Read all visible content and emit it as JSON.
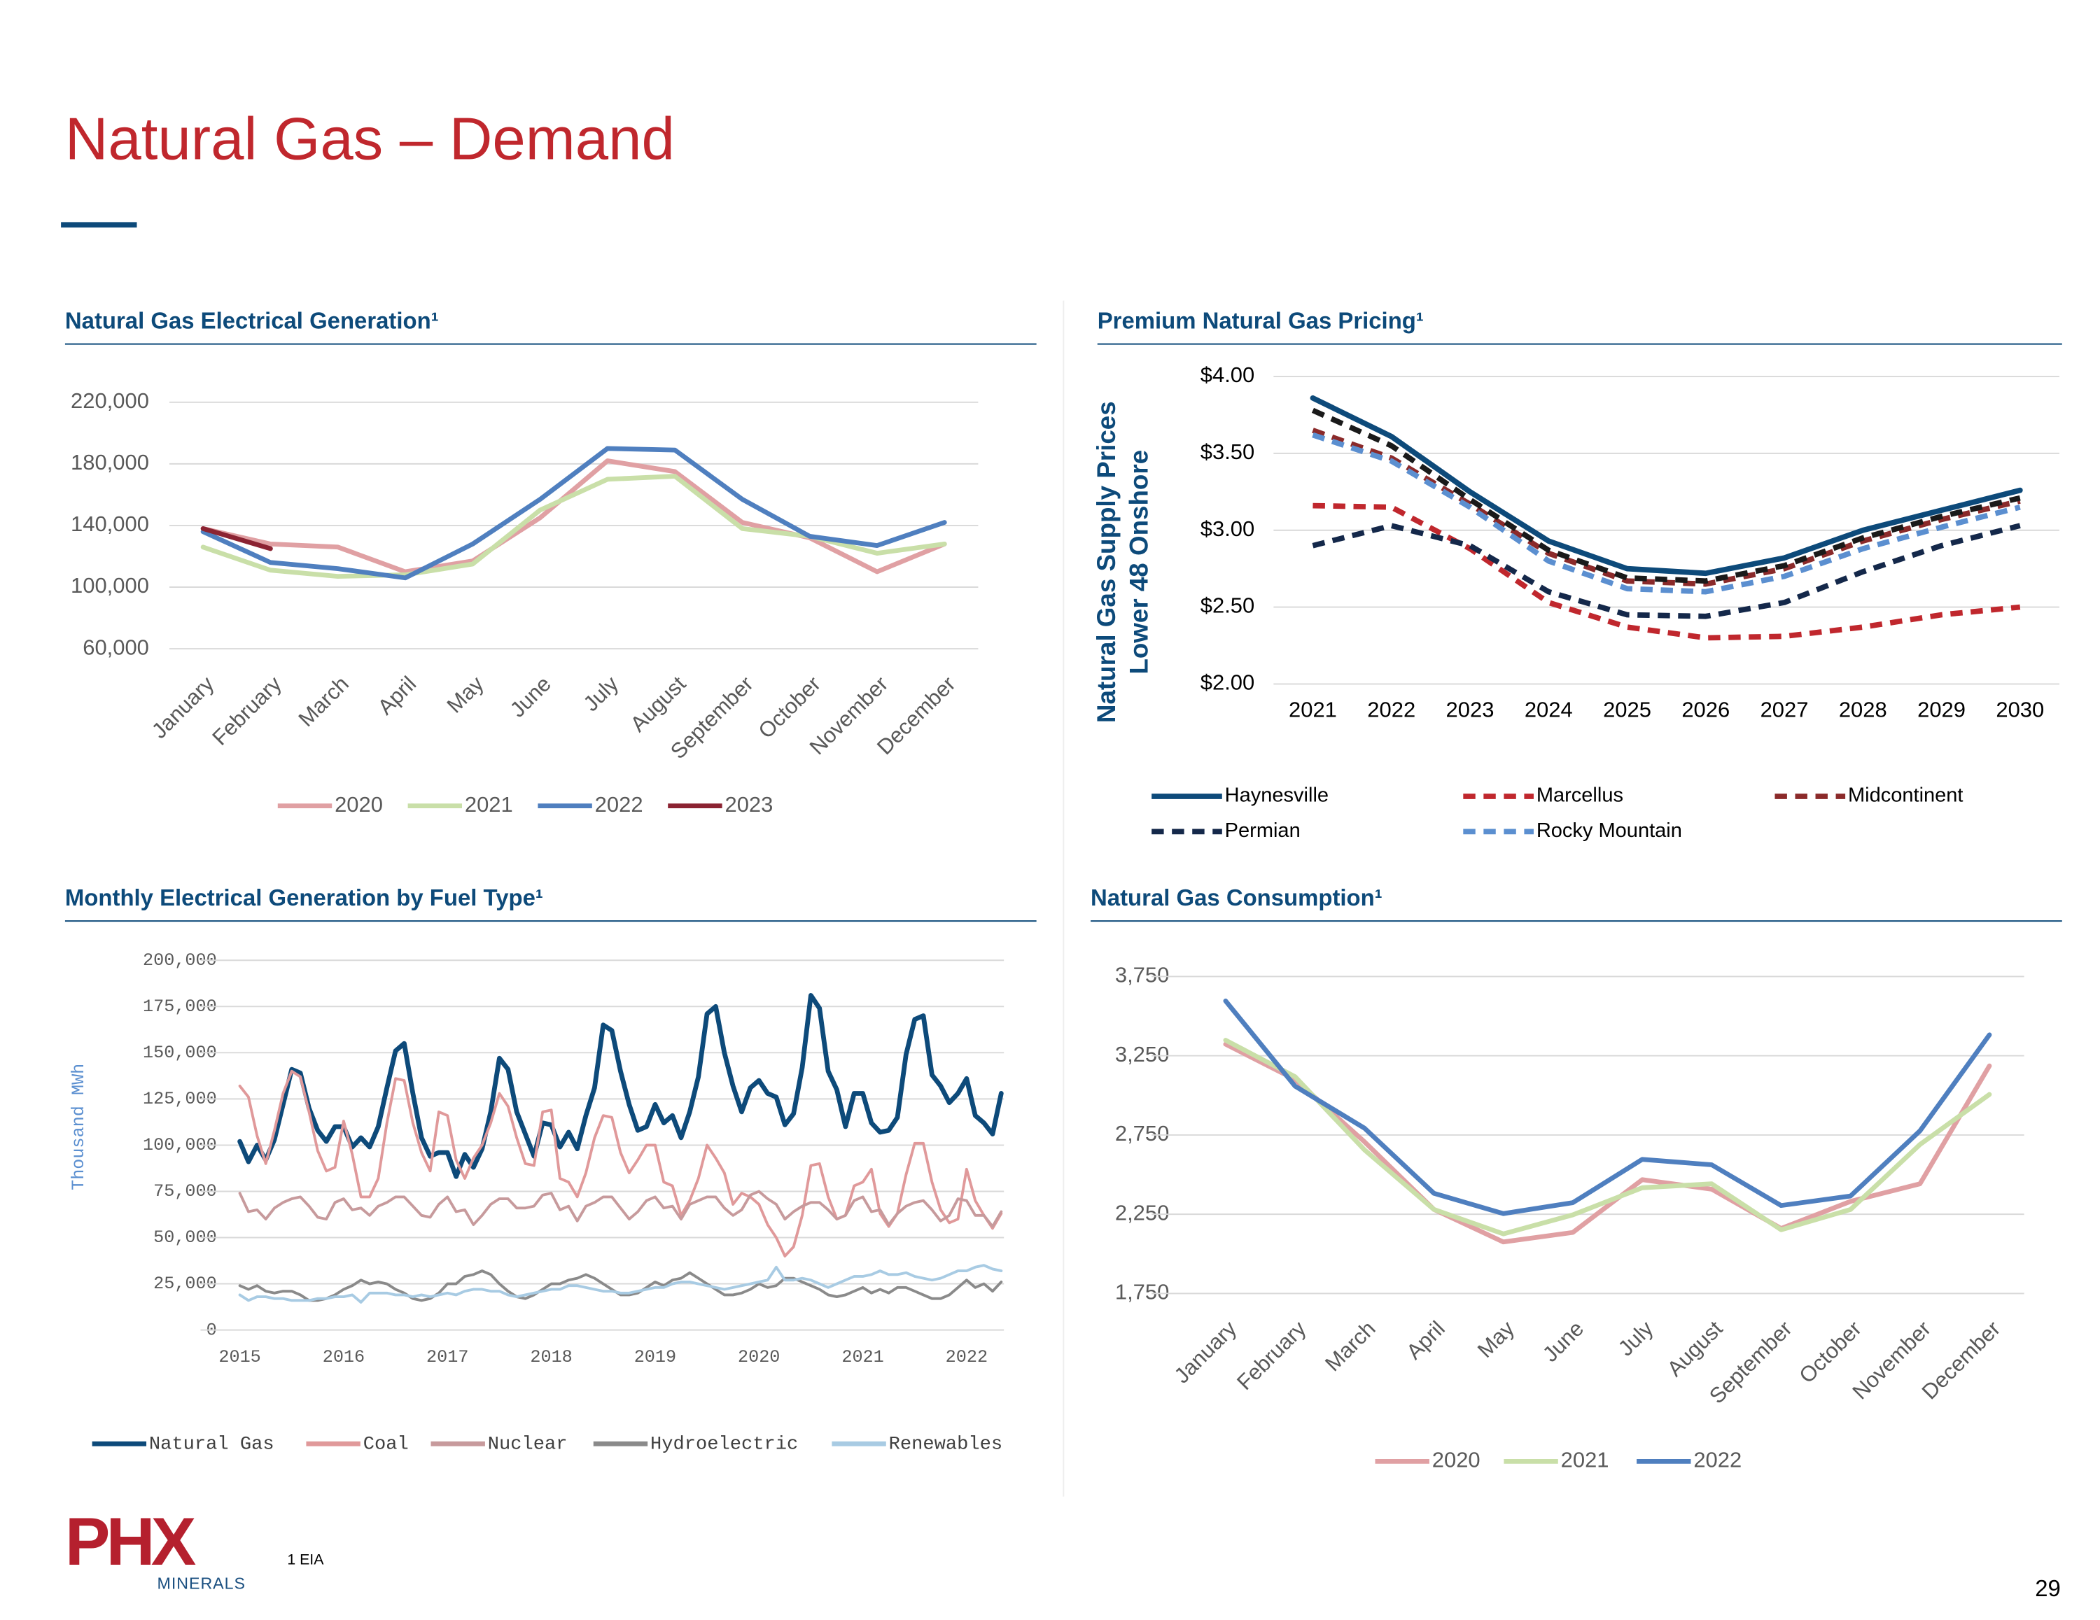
{
  "header": {
    "title": "Natural Gas – Demand"
  },
  "footnote": "1 EIA",
  "page_number": "29",
  "logo": {
    "name": "PHX",
    "sub": "MINERALS"
  },
  "chart_data": [
    {
      "type": "line",
      "title": "Natural Gas Electrical Generation¹",
      "categories": [
        "January",
        "February",
        "March",
        "April",
        "May",
        "June",
        "July",
        "August",
        "September",
        "October",
        "November",
        "December"
      ],
      "series": [
        {
          "name": "2020",
          "color": "#e0a0a3",
          "values": [
            138000,
            128000,
            126000,
            110000,
            117000,
            145000,
            182000,
            175000,
            142000,
            132000,
            110000,
            128000
          ]
        },
        {
          "name": "2021",
          "color": "#c9dfa8",
          "values": [
            126000,
            111000,
            107000,
            108000,
            115000,
            150000,
            170000,
            172000,
            138000,
            133000,
            122000,
            128000
          ]
        },
        {
          "name": "2022",
          "color": "#4f7fbf",
          "values": [
            136000,
            116000,
            112000,
            106000,
            128000,
            157000,
            190000,
            189000,
            157000,
            133000,
            127000,
            142000
          ]
        },
        {
          "name": "2023",
          "color": "#8b2332",
          "values": [
            138000,
            125000,
            null,
            null,
            null,
            null,
            null,
            null,
            null,
            null,
            null,
            null
          ]
        }
      ],
      "ylim": [
        60000,
        220000
      ],
      "yticks": [
        {
          "value": 60000,
          "label": "60,000"
        },
        {
          "value": 100000,
          "label": "100,000"
        },
        {
          "value": 140000,
          "label": "140,000"
        },
        {
          "value": 180000,
          "label": "180,000"
        },
        {
          "value": 220000,
          "label": "220,000"
        }
      ],
      "grid": true,
      "legend": "bottom"
    },
    {
      "type": "line",
      "title": "Premium Natural Gas Pricing¹",
      "y_label": [
        "Natural Gas Supply Prices",
        "Lower 48 Onshore"
      ],
      "categories": [
        "2021",
        "2022",
        "2023",
        "2024",
        "2025",
        "2026",
        "2027",
        "2028",
        "2029",
        "2030"
      ],
      "series": [
        {
          "name": "Haynesville",
          "color": "#0d4a7a",
          "dash": false,
          "values": [
            3.86,
            3.61,
            3.25,
            2.93,
            2.75,
            2.72,
            2.82,
            3.0,
            3.13,
            3.26
          ]
        },
        {
          "name": "Marcellus",
          "color": "#c0272d",
          "dash": true,
          "values": [
            3.16,
            3.15,
            2.88,
            2.53,
            2.37,
            2.3,
            2.31,
            2.37,
            2.45,
            2.5
          ]
        },
        {
          "name": "Midcontinent",
          "color": "#8b2a2a",
          "dash": true,
          "values": [
            3.65,
            3.47,
            3.17,
            2.85,
            2.67,
            2.65,
            2.75,
            2.93,
            3.07,
            3.19
          ]
        },
        {
          "name": "Permian",
          "color": "#14284a",
          "dash": true,
          "values": [
            2.9,
            3.03,
            2.9,
            2.6,
            2.45,
            2.44,
            2.53,
            2.73,
            2.9,
            3.03
          ]
        },
        {
          "name": "Rocky Mountain",
          "color": "#5b8fd0",
          "dash": true,
          "values": [
            3.62,
            3.45,
            3.15,
            2.8,
            2.62,
            2.6,
            2.7,
            2.88,
            3.02,
            3.15
          ]
        },
        {
          "name": null,
          "color": "#1a1a1a",
          "dash": true,
          "values": [
            3.78,
            3.55,
            3.2,
            2.87,
            2.69,
            2.67,
            2.77,
            2.95,
            3.09,
            3.21
          ]
        }
      ],
      "ylim": [
        2,
        4
      ],
      "yticks": [
        {
          "value": 2,
          "label": "$2.00"
        },
        {
          "value": 2.5,
          "label": "$2.50"
        },
        {
          "value": 3,
          "label": "$3.00"
        },
        {
          "value": 3.5,
          "label": "$3.50"
        },
        {
          "value": 4,
          "label": "$4.00"
        }
      ],
      "grid": true,
      "legend": "bottom"
    },
    {
      "type": "line",
      "title": "Monthly Electrical Generation by Fuel Type¹",
      "y_label": [
        "Thousand MWh"
      ],
      "categories": [
        "2015",
        null,
        null,
        null,
        null,
        null,
        null,
        null,
        null,
        null,
        null,
        null,
        "2016",
        null,
        null,
        null,
        null,
        null,
        null,
        null,
        null,
        null,
        null,
        null,
        "2017",
        null,
        null,
        null,
        null,
        null,
        null,
        null,
        null,
        null,
        null,
        null,
        "2018",
        null,
        null,
        null,
        null,
        null,
        null,
        null,
        null,
        null,
        null,
        null,
        "2019",
        null,
        null,
        null,
        null,
        null,
        null,
        null,
        null,
        null,
        null,
        null,
        "2020",
        null,
        null,
        null,
        null,
        null,
        null,
        null,
        null,
        null,
        null,
        null,
        "2021",
        null,
        null,
        null,
        null,
        null,
        null,
        null,
        null,
        null,
        null,
        null,
        "2022",
        null,
        null,
        null,
        null
      ],
      "series": [
        {
          "name": "Natural Gas",
          "color": "#0d4a7a",
          "values": [
            102000,
            91000,
            100000,
            92000,
            103000,
            122000,
            141000,
            139000,
            120000,
            108000,
            102000,
            110000,
            110000,
            99000,
            104000,
            99000,
            110000,
            131000,
            151000,
            155000,
            128000,
            104000,
            94000,
            96000,
            96000,
            83000,
            95000,
            88000,
            98000,
            118000,
            147000,
            141000,
            118000,
            106000,
            94000,
            112000,
            111000,
            99000,
            107000,
            98000,
            116000,
            131000,
            165000,
            162000,
            140000,
            122000,
            108000,
            110000,
            122000,
            112000,
            116000,
            104000,
            118000,
            137000,
            171000,
            175000,
            150000,
            132000,
            118000,
            131000,
            135000,
            128000,
            126000,
            111000,
            117000,
            142000,
            181000,
            174000,
            140000,
            130000,
            110000,
            128000,
            128000,
            112000,
            107000,
            108000,
            115000,
            149000,
            168000,
            170000,
            138000,
            132000,
            123000,
            128000,
            136000,
            116000,
            112000,
            106000,
            128000
          ]
        },
        {
          "name": "Coal",
          "color": "#e0999a",
          "values": [
            132000,
            126000,
            105000,
            90000,
            108000,
            128000,
            140000,
            137000,
            118000,
            97000,
            86000,
            88000,
            113000,
            95000,
            72000,
            72000,
            82000,
            112000,
            136000,
            135000,
            112000,
            96000,
            86000,
            118000,
            116000,
            92000,
            82000,
            93000,
            100000,
            112000,
            128000,
            121000,
            104000,
            90000,
            89000,
            118000,
            119000,
            82000,
            80000,
            72000,
            85000,
            104000,
            116000,
            115000,
            96000,
            85000,
            92000,
            100000,
            100000,
            80000,
            78000,
            62000,
            70000,
            82000,
            100000,
            93000,
            85000,
            68000,
            74000,
            72000,
            68000,
            57000,
            50000,
            40000,
            45000,
            62000,
            89000,
            90000,
            72000,
            60000,
            62000,
            78000,
            80000,
            87000,
            63000,
            56000,
            63000,
            84000,
            101000,
            101000,
            80000,
            65000,
            58000,
            60000,
            87000,
            70000,
            62000,
            55000,
            63000
          ]
        },
        {
          "name": "Nuclear",
          "color": "#c79a9c",
          "values": [
            74000,
            64000,
            65000,
            60000,
            66000,
            69000,
            71000,
            72000,
            67000,
            61000,
            60000,
            69000,
            71000,
            65000,
            66000,
            62000,
            67000,
            69000,
            72000,
            72000,
            67000,
            62000,
            61000,
            68000,
            72000,
            64000,
            65000,
            57000,
            62000,
            68000,
            71000,
            71000,
            66000,
            66000,
            67000,
            73000,
            74000,
            65000,
            67000,
            59000,
            67000,
            69000,
            72000,
            72000,
            66000,
            60000,
            64000,
            70000,
            72000,
            66000,
            67000,
            60000,
            68000,
            70000,
            72000,
            72000,
            66000,
            62000,
            65000,
            73000,
            75000,
            71000,
            68000,
            60000,
            64000,
            67000,
            69000,
            69000,
            65000,
            60000,
            62000,
            70000,
            72000,
            64000,
            65000,
            57000,
            63000,
            67000,
            69000,
            70000,
            65000,
            59000,
            62000,
            71000,
            70000,
            62000,
            62000,
            56000,
            64000
          ]
        },
        {
          "name": "Hydroelectric",
          "color": "#8a8a8a",
          "values": [
            24000,
            22000,
            24000,
            21000,
            20000,
            21000,
            21000,
            19000,
            16000,
            16000,
            17000,
            19000,
            22000,
            24000,
            27000,
            25000,
            26000,
            25000,
            22000,
            20000,
            17000,
            16000,
            17000,
            20000,
            25000,
            25000,
            29000,
            30000,
            32000,
            30000,
            25000,
            21000,
            18000,
            17000,
            19000,
            22000,
            25000,
            25000,
            27000,
            28000,
            30000,
            28000,
            25000,
            22000,
            19000,
            19000,
            20000,
            23000,
            26000,
            24000,
            27000,
            28000,
            31000,
            28000,
            25000,
            22000,
            19000,
            19000,
            20000,
            22000,
            25000,
            23000,
            24000,
            28000,
            28000,
            26000,
            24000,
            22000,
            19000,
            18000,
            19000,
            21000,
            23000,
            20000,
            22000,
            20000,
            23000,
            23000,
            21000,
            19000,
            17000,
            17000,
            19000,
            23000,
            27000,
            23000,
            25000,
            21000,
            26000
          ]
        },
        {
          "name": "Renewables",
          "color": "#a8cbe3",
          "values": [
            19000,
            16000,
            18000,
            18000,
            17000,
            17000,
            16000,
            16000,
            16000,
            17000,
            17000,
            18000,
            18000,
            19000,
            15000,
            20000,
            20000,
            20000,
            19000,
            19000,
            18000,
            19000,
            18000,
            19000,
            20000,
            19000,
            21000,
            22000,
            22000,
            21000,
            21000,
            19000,
            18000,
            19000,
            20000,
            21000,
            22000,
            22000,
            24000,
            24000,
            23000,
            22000,
            21000,
            21000,
            20000,
            20000,
            21000,
            22000,
            23000,
            23000,
            25000,
            26000,
            26000,
            25000,
            24000,
            23000,
            22000,
            23000,
            24000,
            25000,
            26000,
            27000,
            34000,
            27000,
            27000,
            28000,
            27000,
            25000,
            23000,
            25000,
            27000,
            29000,
            29000,
            30000,
            32000,
            30000,
            30000,
            31000,
            29000,
            28000,
            27000,
            28000,
            30000,
            32000,
            32000,
            34000,
            35000,
            33000,
            32000
          ]
        }
      ],
      "ylim": [
        0,
        200000
      ],
      "yticks": [
        0,
        {
          "value": 25000,
          "label": "25,000"
        },
        {
          "value": 50000,
          "label": "50,000"
        },
        {
          "value": 75000,
          "label": "75,000"
        },
        {
          "value": 100000,
          "label": "100,000"
        },
        {
          "value": 125000,
          "label": "125,000"
        },
        {
          "value": 150000,
          "label": "150,000"
        },
        {
          "value": 175000,
          "label": "175,000"
        },
        {
          "value": 200000,
          "label": "200,000"
        }
      ],
      "grid": true,
      "legend": "bottom"
    },
    {
      "type": "line",
      "title": "Natural Gas Consumption¹",
      "categories": [
        "January",
        "February",
        "March",
        "April",
        "May",
        "June",
        "July",
        "August",
        "September",
        "October",
        "November",
        "December"
      ],
      "series": [
        {
          "name": "2020",
          "color": "#e0a0a3",
          "values": [
            3323,
            3100,
            2707,
            2280,
            2075,
            2135,
            2468,
            2408,
            2160,
            2331,
            2442,
            3186
          ]
        },
        {
          "name": "2021",
          "color": "#c9dfa8",
          "values": [
            3348,
            3118,
            2656,
            2280,
            2126,
            2246,
            2417,
            2442,
            2152,
            2280,
            2690,
            3006
          ]
        },
        {
          "name": "2022",
          "color": "#4f7fbf",
          "values": [
            3596,
            3058,
            2793,
            2382,
            2254,
            2323,
            2596,
            2562,
            2305,
            2365,
            2776,
            3382
          ]
        }
      ],
      "ylim": [
        1750,
        3750
      ],
      "yticks": [
        {
          "value": 1750,
          "label": "1,750"
        },
        {
          "value": 2250,
          "label": "2,250"
        },
        {
          "value": 2750,
          "label": "2,750"
        },
        {
          "value": 3250,
          "label": "3,250"
        },
        {
          "value": 3750,
          "label": "3,750"
        }
      ],
      "grid": true,
      "legend": "bottom"
    }
  ]
}
